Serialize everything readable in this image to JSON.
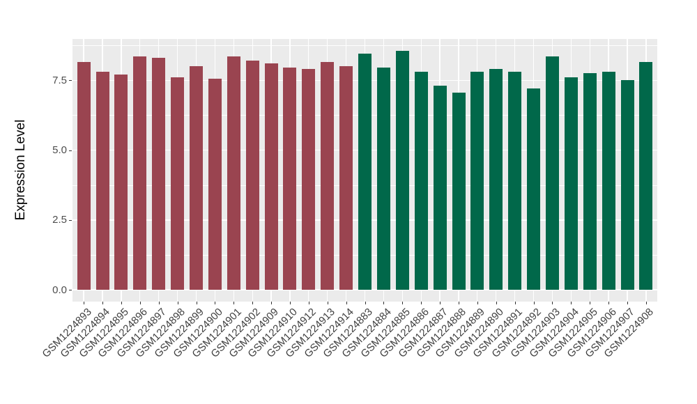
{
  "figure": {
    "background_color": "#FFFFFF",
    "panel_background_color": "#EBEBEB",
    "gridline_color": "#FFFFFF",
    "axis_text_color": "#4D4D4D"
  },
  "chart_data": {
    "type": "bar",
    "title": "",
    "xlabel": "",
    "ylabel": "Expression Level",
    "legend_position": "none",
    "grid": "on",
    "y_axis": {
      "tick_values": [
        0,
        2.5,
        5,
        7.5
      ],
      "tick_labels": [
        "0.0",
        "2.5",
        "5.0",
        "7.5"
      ],
      "minor_gridline_values": [
        1.25,
        3.75,
        6.25,
        8.75
      ],
      "range_shown": [
        -0.44,
        8.99
      ]
    },
    "categories": [
      "GSM1224893",
      "GSM1224894",
      "GSM1224895",
      "GSM1224896",
      "GSM1224897",
      "GSM1224898",
      "GSM1224899",
      "GSM1224900",
      "GSM1224901",
      "GSM1224902",
      "GSM1224909",
      "GSM1224910",
      "GSM1224912",
      "GSM1224913",
      "GSM1224914",
      "GSM1224883",
      "GSM1224884",
      "GSM1224885",
      "GSM1224886",
      "GSM1224887",
      "GSM1224888",
      "GSM1224889",
      "GSM1224890",
      "GSM1224891",
      "GSM1224892",
      "GSM1224903",
      "GSM1224904",
      "GSM1224905",
      "GSM1224906",
      "GSM1224907",
      "GSM1224908"
    ],
    "values": [
      8.15,
      7.8,
      7.7,
      8.35,
      8.3,
      7.6,
      8.0,
      7.55,
      8.35,
      8.2,
      8.1,
      7.95,
      7.9,
      8.15,
      8.0,
      8.45,
      7.95,
      8.55,
      7.8,
      7.3,
      7.05,
      7.8,
      7.9,
      7.8,
      7.2,
      8.35,
      7.6,
      7.75,
      7.8,
      7.5,
      8.15
    ],
    "bar_groups": [
      0,
      0,
      0,
      0,
      0,
      0,
      0,
      0,
      0,
      0,
      0,
      0,
      0,
      0,
      0,
      1,
      1,
      1,
      1,
      1,
      1,
      1,
      1,
      1,
      1,
      1,
      1,
      1,
      1,
      1,
      1
    ],
    "group_colors": [
      "#9A4450",
      "#01684A"
    ]
  }
}
